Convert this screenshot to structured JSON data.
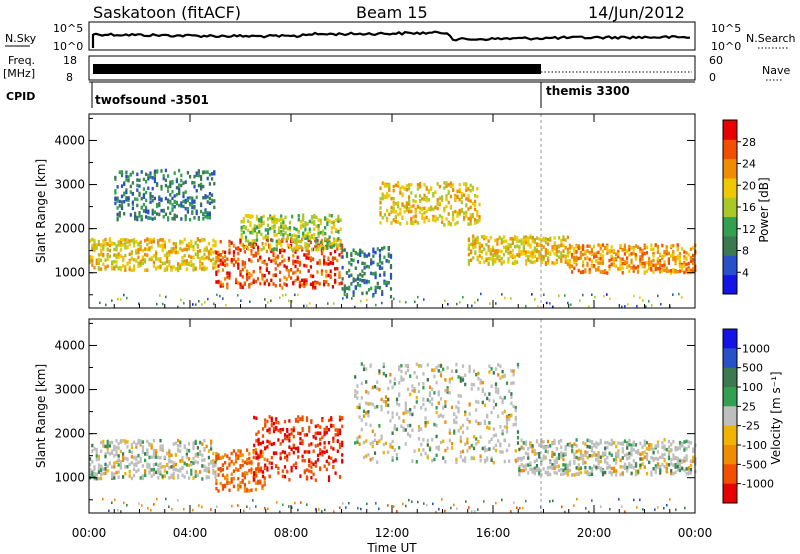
{
  "header": {
    "station": "Saskatoon (fitACF)",
    "beam": "Beam 15",
    "date": "14/Jun/2012"
  },
  "strips": {
    "nsky_label": "N.Sky",
    "nsearch_label": "N.Search",
    "nsky_ticks": [
      "10^5",
      "10^0"
    ],
    "nsky_right_ticks": [
      "10^5",
      "10^0"
    ],
    "freq_label_1": "Freq.",
    "freq_label_2": "[MHz]",
    "freq_ticks": [
      "18",
      "8"
    ],
    "nave_label": "Nave",
    "nave_ticks": [
      "60",
      "0"
    ],
    "cpid_label": "CPID",
    "cpid_segments": [
      {
        "name": "twofsound -3501",
        "start_hour": 0,
        "end_hour": 18
      },
      {
        "name": "themis 3300",
        "start_hour": 18,
        "end_hour": 24
      }
    ]
  },
  "colors": {
    "power": [
      "#1414e6",
      "#2850c8",
      "#3c7850",
      "#32a050",
      "#aac828",
      "#f0c800",
      "#f08c00",
      "#f05000",
      "#e60000"
    ],
    "velocity": [
      "#1414e6",
      "#2850c8",
      "#3c7850",
      "#32a050",
      "#bebebe",
      "#f0b400",
      "#f08c00",
      "#f05000",
      "#e60000"
    ],
    "gray": "#c0c0c0"
  },
  "chart_data": [
    {
      "type": "heatmap",
      "panel": "power",
      "xlabel": "",
      "ylabel": "Slant Range [km]",
      "xlim": [
        0,
        24
      ],
      "ylim": [
        200,
        4600
      ],
      "yticks": [
        1000,
        2000,
        3000,
        4000
      ],
      "colorbar": {
        "label": "Power [dB]",
        "ticks": [
          28,
          24,
          20,
          16,
          12,
          8,
          4
        ],
        "range": [
          0,
          32
        ]
      },
      "bands": [
        {
          "start_hour": 0.0,
          "end_hour": 5.0,
          "center_km": 1450,
          "width_km": 450,
          "level": 20
        },
        {
          "start_hour": 1.0,
          "end_hour": 5.0,
          "center_km": 2800,
          "width_km": 700,
          "level": 8
        },
        {
          "start_hour": 5.0,
          "end_hour": 10.0,
          "center_km": 1250,
          "width_km": 700,
          "level": 28
        },
        {
          "start_hour": 6.0,
          "end_hour": 10.0,
          "center_km": 1950,
          "width_km": 500,
          "level": 16
        },
        {
          "start_hour": 10.0,
          "end_hour": 12.0,
          "center_km": 1050,
          "width_km": 700,
          "level": 8
        },
        {
          "start_hour": 11.5,
          "end_hour": 15.5,
          "center_km": 2600,
          "width_km": 600,
          "level": 20
        },
        {
          "start_hour": 15.0,
          "end_hour": 19.0,
          "center_km": 1550,
          "width_km": 400,
          "level": 20
        },
        {
          "start_hour": 19.0,
          "end_hour": 24.0,
          "center_km": 1350,
          "width_km": 400,
          "level": 24
        }
      ]
    },
    {
      "type": "heatmap",
      "panel": "velocity",
      "xlabel": "Time UT",
      "ylabel": "Slant Range [km]",
      "xlim": [
        0,
        24
      ],
      "ylim": [
        200,
        4600
      ],
      "yticks": [
        1000,
        2000,
        3000,
        4000
      ],
      "xticks": [
        "00:00",
        "04:00",
        "08:00",
        "12:00",
        "16:00",
        "20:00",
        "00:00"
      ],
      "colorbar": {
        "label": "Velocity [m s⁻¹]",
        "ticks": [
          "1000",
          "500",
          "100",
          "25",
          "-25",
          "-100",
          "-500",
          "-1000"
        ]
      },
      "bands": [
        {
          "start_hour": 0.0,
          "end_hour": 5.0,
          "center_km": 1450,
          "width_km": 550,
          "level": 0
        },
        {
          "start_hour": 5.0,
          "end_hour": 7.0,
          "center_km": 1200,
          "width_km": 600,
          "level": -300
        },
        {
          "start_hour": 6.5,
          "end_hour": 10.0,
          "center_km": 1700,
          "width_km": 900,
          "level": -700
        },
        {
          "start_hour": 10.5,
          "end_hour": 17.0,
          "center_km": 2500,
          "width_km": 1400,
          "level": 0
        },
        {
          "start_hour": 17.0,
          "end_hour": 24.0,
          "center_km": 1500,
          "width_km": 500,
          "level": 0
        }
      ]
    }
  ]
}
